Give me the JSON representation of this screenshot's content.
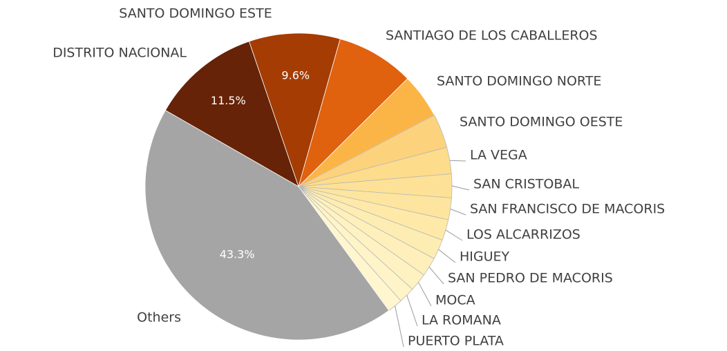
{
  "chart_data": {
    "type": "pie",
    "categories": [
      "DISTRITO NACIONAL",
      "SANTO DOMINGO ESTE",
      "SANTIAGO DE LOS CABALLEROS",
      "SANTO DOMINGO NORTE",
      "SANTO DOMINGO OESTE",
      "LA VEGA",
      "SAN CRISTOBAL",
      "SAN FRANCISCO DE MACORIS",
      "LOS ALCARRIZOS",
      "HIGUEY",
      "SAN PEDRO DE MACORIS",
      "MOCA",
      "LA ROMANA",
      "PUERTO PLATA",
      "Others"
    ],
    "values": [
      11.5,
      9.6,
      8.2,
      4.7,
      3.6,
      2.8,
      2.5,
      2.3,
      2.2,
      2.1,
      2.0,
      1.9,
      1.7,
      1.6,
      43.3
    ],
    "value_labels": [
      "11.5%",
      "9.6%",
      null,
      null,
      null,
      null,
      null,
      null,
      null,
      null,
      null,
      null,
      null,
      null,
      "43.3%"
    ],
    "colors": [
      "#662307",
      "#a43c04",
      "#e0610e",
      "#fbb547",
      "#fcd27c",
      "#fddc8c",
      "#fde196",
      "#fde59f",
      "#fee9a8",
      "#feedb2",
      "#fff0bb",
      "#fff2c2",
      "#fff4c8",
      "#fff6cf",
      "#a5a5a5"
    ]
  }
}
